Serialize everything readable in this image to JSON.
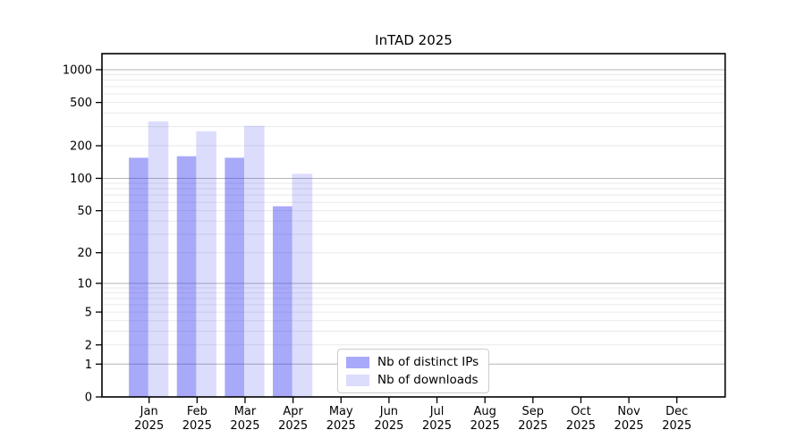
{
  "chart_data": {
    "type": "bar",
    "title": "InTAD 2025",
    "scale": "log1p",
    "grid": "both",
    "ylim": [
      0,
      1000
    ],
    "yticks": [
      0,
      1,
      2,
      5,
      10,
      20,
      50,
      100,
      200,
      500,
      1000
    ],
    "categories": [
      {
        "month": "Jan",
        "year": "2025"
      },
      {
        "month": "Feb",
        "year": "2025"
      },
      {
        "month": "Mar",
        "year": "2025"
      },
      {
        "month": "Apr",
        "year": "2025"
      },
      {
        "month": "May",
        "year": "2025"
      },
      {
        "month": "Jun",
        "year": "2025"
      },
      {
        "month": "Jul",
        "year": "2025"
      },
      {
        "month": "Aug",
        "year": "2025"
      },
      {
        "month": "Sep",
        "year": "2025"
      },
      {
        "month": "Oct",
        "year": "2025"
      },
      {
        "month": "Nov",
        "year": "2025"
      },
      {
        "month": "Dec",
        "year": "2025"
      }
    ],
    "series": [
      {
        "name": "Nb of distinct IPs",
        "color": "rgba(50,50,242,0.42)",
        "values": [
          155,
          160,
          155,
          55,
          0,
          0,
          0,
          0,
          0,
          0,
          0,
          0
        ]
      },
      {
        "name": "Nb of downloads",
        "color": "rgba(35,35,235,0.16)",
        "values": [
          335,
          272,
          305,
          110,
          0,
          0,
          0,
          0,
          0,
          0,
          0,
          0
        ]
      }
    ],
    "legend_position": "lower center-left",
    "colors": {
      "axis": "#000000",
      "major_grid": "#b5b5b5",
      "minor_grid": "#e9e9e9",
      "tick_text": "#000000"
    }
  }
}
